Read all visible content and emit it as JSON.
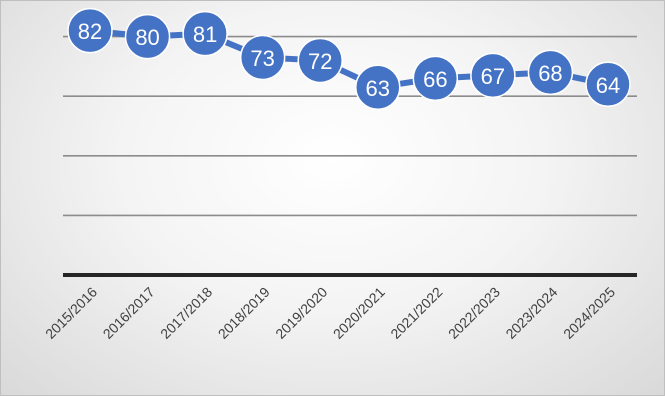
{
  "chart_data": {
    "type": "line",
    "categories": [
      "2015/2016",
      "2016/2017",
      "2017/2018",
      "2018/2019",
      "2019/2020",
      "2020/2021",
      "2021/2022",
      "2022/2023",
      "2023/2024",
      "2024/2025"
    ],
    "series": [
      {
        "values": [
          82,
          80,
          81,
          73,
          72,
          63,
          66,
          67,
          68,
          64
        ]
      }
    ],
    "title": "",
    "xlabel": "",
    "ylabel": "",
    "ylim": [
      0,
      100
    ],
    "y_axis_labels_visible": false,
    "gridlines": true,
    "legend": "none",
    "data_labels": true,
    "colors": {
      "series": "#4472c4",
      "grid": "#8c8c8c",
      "axis": "#262626",
      "label": "#404040"
    }
  }
}
